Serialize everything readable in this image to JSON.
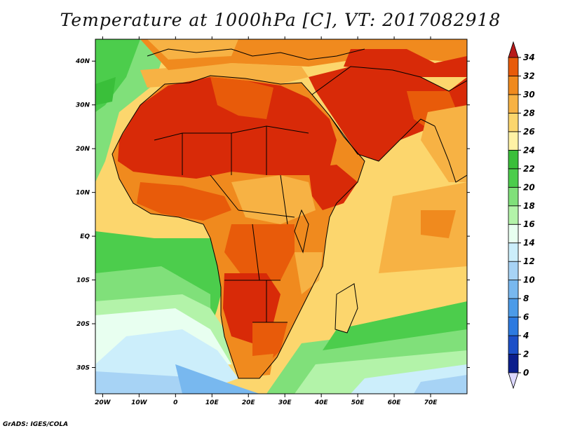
{
  "title": "Temperature at 1000hPa [C], VT: 2017082918",
  "credit": "GrADS: IGES/COLA",
  "map": {
    "lon_range": [
      -22,
      80
    ],
    "lat_range": [
      -36,
      45
    ],
    "lon_ticks": [
      {
        "value": -20,
        "label": "20W"
      },
      {
        "value": -10,
        "label": "10W"
      },
      {
        "value": 0,
        "label": "0"
      },
      {
        "value": 10,
        "label": "10E"
      },
      {
        "value": 20,
        "label": "20E"
      },
      {
        "value": 30,
        "label": "30E"
      },
      {
        "value": 40,
        "label": "40E"
      },
      {
        "value": 50,
        "label": "50E"
      },
      {
        "value": 60,
        "label": "60E"
      },
      {
        "value": 70,
        "label": "70E"
      }
    ],
    "lat_ticks": [
      {
        "value": 40,
        "label": "40N"
      },
      {
        "value": 30,
        "label": "30N"
      },
      {
        "value": 20,
        "label": "20N"
      },
      {
        "value": 10,
        "label": "10N"
      },
      {
        "value": 0,
        "label": "EQ"
      },
      {
        "value": -10,
        "label": "10S"
      },
      {
        "value": -20,
        "label": "20S"
      },
      {
        "value": -30,
        "label": "30S"
      }
    ]
  },
  "colorbar": {
    "levels": [
      "0",
      "2",
      "4",
      "6",
      "8",
      "10",
      "12",
      "14",
      "16",
      "18",
      "20",
      "22",
      "24",
      "26",
      "28",
      "30",
      "32",
      "34"
    ],
    "colors": [
      "#0b1e8c",
      "#1c4fc8",
      "#2d7ae0",
      "#4c9be8",
      "#78b8ef",
      "#a7d3f5",
      "#cceefb",
      "#e8fff0",
      "#b3f3a9",
      "#80e07a",
      "#4ccd4c",
      "#3abf3a",
      "#fff2a5",
      "#fcd66d",
      "#f7b244",
      "#f08a1e",
      "#e85b0a",
      "#d82a08",
      "#b81a1a"
    ],
    "under_color": "#dcd8ff"
  }
}
